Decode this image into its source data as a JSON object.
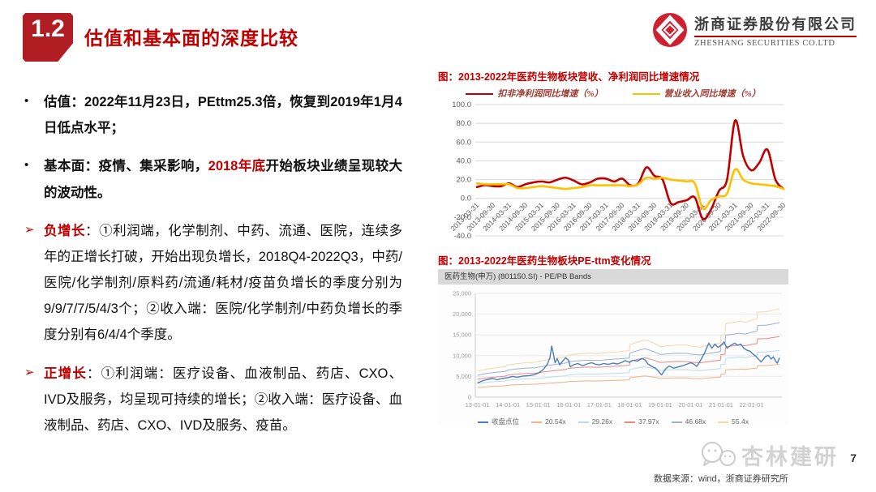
{
  "header": {
    "section_number": "1.2",
    "title": "估值和基本面的深度比较"
  },
  "logo": {
    "company_cn": "浙商证券股份有限公司",
    "company_en": "ZHESHANG SECURITIES CO.LTD",
    "brand_color": "#cf2030"
  },
  "bullets": [
    {
      "marker": "•",
      "marker_style": "dot",
      "segments": [
        {
          "text": "估值：2022年11月23日，PEttm25.3倍，恢复到2019年1月4日低点水平；",
          "style": "bold"
        }
      ]
    },
    {
      "marker": "•",
      "marker_style": "dot",
      "segments": [
        {
          "text": "基本面：疫情、集采影响，",
          "style": "bold"
        },
        {
          "text": "2018年底",
          "style": "bold-red"
        },
        {
          "text": "开始板块业绩呈现较大的波动性。",
          "style": "bold"
        }
      ]
    },
    {
      "marker": "➢",
      "marker_style": "arrow",
      "segments": [
        {
          "text": "负增长",
          "style": "bold-red"
        },
        {
          "text": "：①利润端，化学制剂、中药、流通、医院，连续多年的正增长打破，开始出现负增长，2018Q4-2022Q3，中药/医院/化学制剂/原料药/流通/耗材/疫苗负增长的季度分别为9/9/7/7/5/4/3个；②收入端：医院/化学制剂/中药负增长的季度分别有6/4/4个季度。",
          "style": "normal"
        }
      ]
    },
    {
      "marker": "➢",
      "marker_style": "arrow",
      "segments": [
        {
          "text": "正增长",
          "style": "bold-red"
        },
        {
          "text": "：①利润端：医疗设备、血液制品、药店、CXO、IVD及服务，均呈现可持续的增长；②收入端：医疗设备、血液制品、药店、CXO、IVD及服务、疫苗。",
          "style": "normal"
        }
      ]
    }
  ],
  "figure1": {
    "title": "图：2013-2022年医药生物板块营收、净利润同比增速情况"
  },
  "figure2": {
    "title": "图：2013-2022年医药生物板块PE-ttm变化情况",
    "panel_header": "医药生物(申万) (801150.SI) - PE/PB Bands"
  },
  "footer": {
    "watermark": "杏林建研",
    "page_number": "7",
    "source": "数据来源：wind，浙商证券研究所"
  },
  "colors": {
    "accent_red": "#c00000",
    "badge_red": "#b01e24",
    "grid_gray": "#d9d9d9",
    "axis_text": "#595959",
    "small_axis_text": "#999999"
  },
  "chart_data": [
    {
      "id": "growth-chart",
      "type": "line",
      "title": "图：2013-2022年医药生物板块营收、净利润同比增速情况",
      "ylim": [
        -40,
        100
      ],
      "y_step": 20,
      "grid": true,
      "legend_position": "top",
      "x_tick_every": 2,
      "categories": [
        "2013-03-31",
        "2013-06-30",
        "2013-09-30",
        "2013-12-31",
        "2014-03-31",
        "2014-06-30",
        "2014-09-30",
        "2014-12-31",
        "2015-03-31",
        "2015-06-30",
        "2015-09-30",
        "2015-12-31",
        "2016-03-31",
        "2016-06-30",
        "2016-09-30",
        "2016-12-31",
        "2017-03-31",
        "2017-06-30",
        "2017-09-30",
        "2017-12-31",
        "2018-03-31",
        "2018-06-30",
        "2018-09-30",
        "2018-12-31",
        "2019-03-31",
        "2019-06-30",
        "2019-09-30",
        "2019-12-31",
        "2020-03-31",
        "2020-06-30",
        "2020-09-30",
        "2020-12-31",
        "2021-03-31",
        "2021-06-30",
        "2021-09-30",
        "2021-12-31",
        "2022-03-31",
        "2022-06-30",
        "2022-09-30"
      ],
      "series": [
        {
          "name": "扣非净利润同比增速（%）",
          "color": "#c00000",
          "values": [
            12,
            14,
            13,
            13,
            16,
            12,
            15,
            17,
            18,
            17,
            20,
            22,
            19,
            15,
            17,
            21,
            21,
            18,
            21,
            14,
            16,
            33,
            24,
            20,
            -5,
            -4,
            -2,
            1,
            -22,
            -12,
            8,
            20,
            83,
            45,
            30,
            38,
            52,
            20,
            10
          ]
        },
        {
          "name": "营业收入同比增速（%）",
          "color": "#ffc000",
          "values": [
            16,
            15,
            15,
            15,
            15,
            11,
            11,
            12,
            13,
            12,
            11,
            10,
            11,
            12,
            14,
            14,
            14,
            14,
            14,
            13,
            15,
            22,
            21,
            22,
            20,
            19,
            18,
            16,
            -11,
            -2,
            2,
            5,
            31,
            20,
            16,
            15,
            14,
            13,
            10
          ]
        }
      ]
    },
    {
      "id": "pe-bands-chart",
      "type": "line",
      "title": "图：2013-2022年医药生物板块PE-ttm变化情况",
      "panel_header": "医药生物(申万) (801150.SI) - PE/PB Bands",
      "xlim": [
        2012.93,
        2023.0
      ],
      "ylim": [
        0,
        25000
      ],
      "y_step": 5000,
      "x_ticks": [
        {
          "x": 2013,
          "label": "13-01-01"
        },
        {
          "x": 2014,
          "label": "14-01-01"
        },
        {
          "x": 2015,
          "label": "15-01-01"
        },
        {
          "x": 2016,
          "label": "16-01-01"
        },
        {
          "x": 2017,
          "label": "17-01-01"
        },
        {
          "x": 2018,
          "label": "18-01-01"
        },
        {
          "x": 2019,
          "label": "19-01-01"
        },
        {
          "x": 2020,
          "label": "20-01-01"
        },
        {
          "x": 2021,
          "label": "21-01-01"
        },
        {
          "x": 2022,
          "label": "22-01-01"
        }
      ],
      "close_series": {
        "name": "收盘点位",
        "color": "#4a7ebb",
        "points": [
          [
            2013.0,
            3400
          ],
          [
            2013.15,
            3900
          ],
          [
            2013.35,
            4300
          ],
          [
            2013.5,
            4500
          ],
          [
            2013.65,
            4200
          ],
          [
            2013.8,
            4500
          ],
          [
            2014.0,
            4700
          ],
          [
            2014.15,
            5000
          ],
          [
            2014.3,
            4800
          ],
          [
            2014.5,
            5100
          ],
          [
            2014.7,
            5200
          ],
          [
            2014.85,
            5400
          ],
          [
            2015.0,
            5800
          ],
          [
            2015.1,
            6300
          ],
          [
            2015.2,
            7000
          ],
          [
            2015.3,
            8000
          ],
          [
            2015.38,
            9500
          ],
          [
            2015.44,
            12300
          ],
          [
            2015.5,
            10200
          ],
          [
            2015.55,
            8300
          ],
          [
            2015.62,
            9300
          ],
          [
            2015.7,
            7800
          ],
          [
            2015.8,
            8700
          ],
          [
            2015.9,
            9500
          ],
          [
            2016.0,
            8800
          ],
          [
            2016.05,
            7300
          ],
          [
            2016.15,
            7800
          ],
          [
            2016.3,
            8100
          ],
          [
            2016.45,
            7600
          ],
          [
            2016.6,
            8000
          ],
          [
            2016.75,
            8300
          ],
          [
            2016.9,
            7900
          ],
          [
            2017.0,
            7800
          ],
          [
            2017.15,
            8100
          ],
          [
            2017.3,
            7900
          ],
          [
            2017.45,
            8200
          ],
          [
            2017.6,
            8000
          ],
          [
            2017.75,
            8400
          ],
          [
            2017.85,
            8800
          ],
          [
            2018.0,
            8400
          ],
          [
            2018.1,
            8900
          ],
          [
            2018.25,
            8700
          ],
          [
            2018.4,
            9300
          ],
          [
            2018.5,
            9000
          ],
          [
            2018.6,
            8000
          ],
          [
            2018.75,
            7300
          ],
          [
            2018.85,
            7000
          ],
          [
            2018.95,
            6200
          ],
          [
            2019.0,
            5700
          ],
          [
            2019.05,
            5400
          ],
          [
            2019.2,
            7000
          ],
          [
            2019.3,
            7500
          ],
          [
            2019.45,
            7000
          ],
          [
            2019.6,
            7300
          ],
          [
            2019.75,
            7600
          ],
          [
            2019.9,
            8000
          ],
          [
            2020.0,
            8300
          ],
          [
            2020.1,
            8000
          ],
          [
            2020.2,
            7400
          ],
          [
            2020.3,
            8500
          ],
          [
            2020.45,
            10500
          ],
          [
            2020.55,
            12200
          ],
          [
            2020.6,
            13000
          ],
          [
            2020.7,
            11800
          ],
          [
            2020.8,
            12800
          ],
          [
            2020.9,
            12000
          ],
          [
            2021.0,
            12500
          ],
          [
            2021.1,
            13300
          ],
          [
            2021.2,
            11800
          ],
          [
            2021.3,
            12400
          ],
          [
            2021.45,
            13000
          ],
          [
            2021.55,
            12500
          ],
          [
            2021.65,
            12800
          ],
          [
            2021.75,
            11800
          ],
          [
            2021.85,
            11300
          ],
          [
            2021.95,
            11100
          ],
          [
            2022.05,
            10400
          ],
          [
            2022.15,
            9800
          ],
          [
            2022.25,
            9000
          ],
          [
            2022.32,
            8500
          ],
          [
            2022.45,
            9700
          ],
          [
            2022.55,
            10100
          ],
          [
            2022.65,
            9200
          ],
          [
            2022.72,
            9700
          ],
          [
            2022.8,
            8600
          ],
          [
            2022.85,
            8200
          ],
          [
            2022.92,
            9500
          ]
        ]
      },
      "pe_bands": {
        "eps_base_points": [
          [
            2013.0,
            113
          ],
          [
            2013.3,
            122
          ],
          [
            2013.6,
            128
          ],
          [
            2013.9,
            133
          ],
          [
            2014.0,
            140
          ],
          [
            2014.3,
            146
          ],
          [
            2014.6,
            150
          ],
          [
            2014.9,
            152
          ],
          [
            2015.0,
            155
          ],
          [
            2015.3,
            163
          ],
          [
            2015.6,
            170
          ],
          [
            2015.9,
            176
          ],
          [
            2016.0,
            183
          ],
          [
            2016.3,
            188
          ],
          [
            2016.6,
            191
          ],
          [
            2016.9,
            190
          ],
          [
            2017.0,
            190
          ],
          [
            2017.3,
            194
          ],
          [
            2017.6,
            197
          ],
          [
            2017.99,
            202
          ],
          [
            2018.01,
            228
          ],
          [
            2018.3,
            242
          ],
          [
            2018.5,
            250
          ],
          [
            2018.7,
            240
          ],
          [
            2018.9,
            228
          ],
          [
            2019.0,
            220
          ],
          [
            2019.3,
            224
          ],
          [
            2019.6,
            227
          ],
          [
            2019.9,
            226
          ],
          [
            2020.0,
            222
          ],
          [
            2020.3,
            218
          ],
          [
            2020.6,
            226
          ],
          [
            2020.98,
            235
          ],
          [
            2021.0,
            270
          ],
          [
            2021.13,
            272
          ],
          [
            2021.15,
            320
          ],
          [
            2021.4,
            325
          ],
          [
            2021.6,
            330
          ],
          [
            2021.8,
            326
          ],
          [
            2022.0,
            335
          ],
          [
            2022.18,
            340
          ],
          [
            2022.2,
            370
          ],
          [
            2022.5,
            372
          ],
          [
            2022.7,
            378
          ],
          [
            2022.92,
            385
          ]
        ],
        "multiples": [
          {
            "label": "20.54x",
            "m": 20.54,
            "color": "#f4b183"
          },
          {
            "label": "29.26x",
            "m": 29.26,
            "color": "#b7dde8"
          },
          {
            "label": "37.97x",
            "m": 37.97,
            "color": "#e88a84"
          },
          {
            "label": "46.68x",
            "m": 46.68,
            "color": "#9db1d4"
          },
          {
            "label": "55.4x",
            "m": 55.4,
            "color": "#f6d7a7"
          }
        ]
      }
    }
  ]
}
